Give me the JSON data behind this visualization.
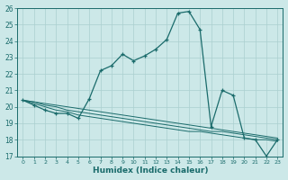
{
  "xlabel": "Humidex (Indice chaleur)",
  "bg_color": "#cce8e8",
  "line_color": "#1a6b6b",
  "grid_color": "#aacfcf",
  "x": [
    0,
    1,
    2,
    3,
    4,
    5,
    6,
    7,
    8,
    9,
    10,
    11,
    12,
    13,
    14,
    15,
    16,
    17,
    18,
    19,
    20,
    21,
    22,
    23
  ],
  "y_main": [
    20.4,
    20.1,
    19.8,
    19.6,
    19.6,
    19.3,
    20.5,
    22.2,
    22.5,
    23.2,
    22.8,
    23.1,
    23.5,
    24.1,
    25.7,
    25.8,
    24.7,
    18.8,
    21.0,
    20.7,
    18.1,
    18.0,
    17.0,
    18.0
  ],
  "y_line1": [
    20.4,
    20.2,
    20.0,
    19.8,
    19.7,
    19.5,
    19.4,
    19.3,
    19.2,
    19.1,
    19.0,
    18.9,
    18.8,
    18.7,
    18.6,
    18.5,
    18.5,
    18.4,
    18.3,
    18.2,
    18.1,
    18.0,
    18.0,
    17.9
  ],
  "y_line2": [
    20.4,
    20.3,
    20.1,
    20.0,
    19.8,
    19.7,
    19.6,
    19.5,
    19.4,
    19.3,
    19.2,
    19.1,
    19.0,
    18.9,
    18.8,
    18.7,
    18.6,
    18.5,
    18.5,
    18.4,
    18.3,
    18.2,
    18.1,
    18.0
  ],
  "y_line3": [
    20.4,
    20.3,
    20.2,
    20.1,
    20.0,
    19.9,
    19.8,
    19.7,
    19.6,
    19.5,
    19.4,
    19.3,
    19.2,
    19.1,
    19.0,
    18.9,
    18.8,
    18.7,
    18.6,
    18.5,
    18.4,
    18.3,
    18.2,
    18.1
  ],
  "ylim": [
    17,
    26
  ],
  "xlim": [
    -0.5,
    23.5
  ],
  "yticks": [
    17,
    18,
    19,
    20,
    21,
    22,
    23,
    24,
    25,
    26
  ],
  "xticks": [
    0,
    1,
    2,
    3,
    4,
    5,
    6,
    7,
    8,
    9,
    10,
    11,
    12,
    13,
    14,
    15,
    16,
    17,
    18,
    19,
    20,
    21,
    22,
    23
  ],
  "figwidth": 3.2,
  "figheight": 2.0,
  "dpi": 100
}
